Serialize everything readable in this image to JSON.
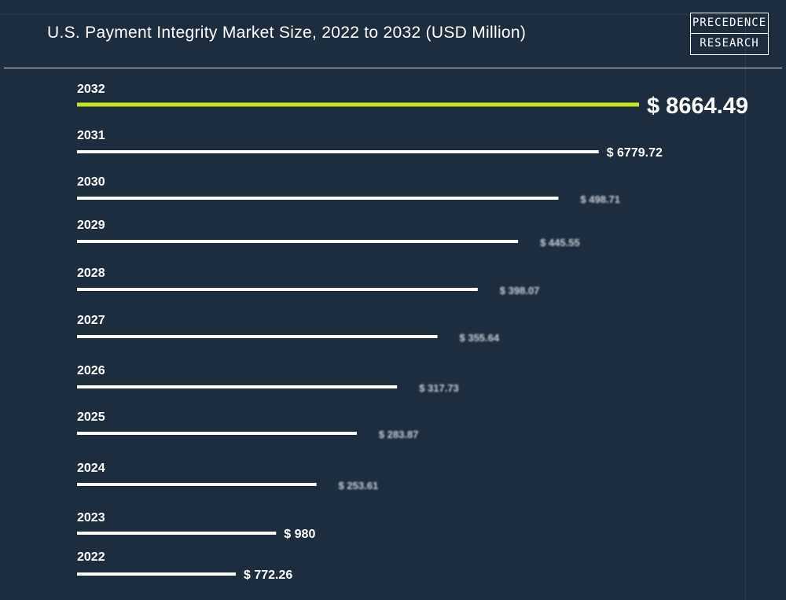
{
  "chart_data": {
    "type": "bar",
    "orientation": "horizontal",
    "title": "U.S. Payment Integrity Market Size, 2022 to 2032 (USD Million)",
    "categories": [
      "2032",
      "2031",
      "2030",
      "2029",
      "2028",
      "2027",
      "2026",
      "2025",
      "2024",
      "2023",
      "2022"
    ],
    "values": [
      8664.49,
      6779.72,
      498.71,
      445.55,
      398.07,
      355.64,
      317.73,
      283.87,
      253.61,
      980,
      772.26
    ],
    "labels": [
      "$ 8664.49",
      "$ 6779.72",
      "$ 498.71",
      "$ 445.55",
      "$ 398.07",
      "$ 355.64",
      "$ 317.73",
      "$ 283.87",
      "$ 253.61",
      "$ 980",
      "$ 772.26"
    ],
    "xlabel": "",
    "ylabel": "",
    "grid": false,
    "highlight_color": "#c8e61e",
    "bar_color": "#ffffff"
  },
  "logo": {
    "line1": "PRECEDENCE",
    "line2": "RESEARCH"
  }
}
